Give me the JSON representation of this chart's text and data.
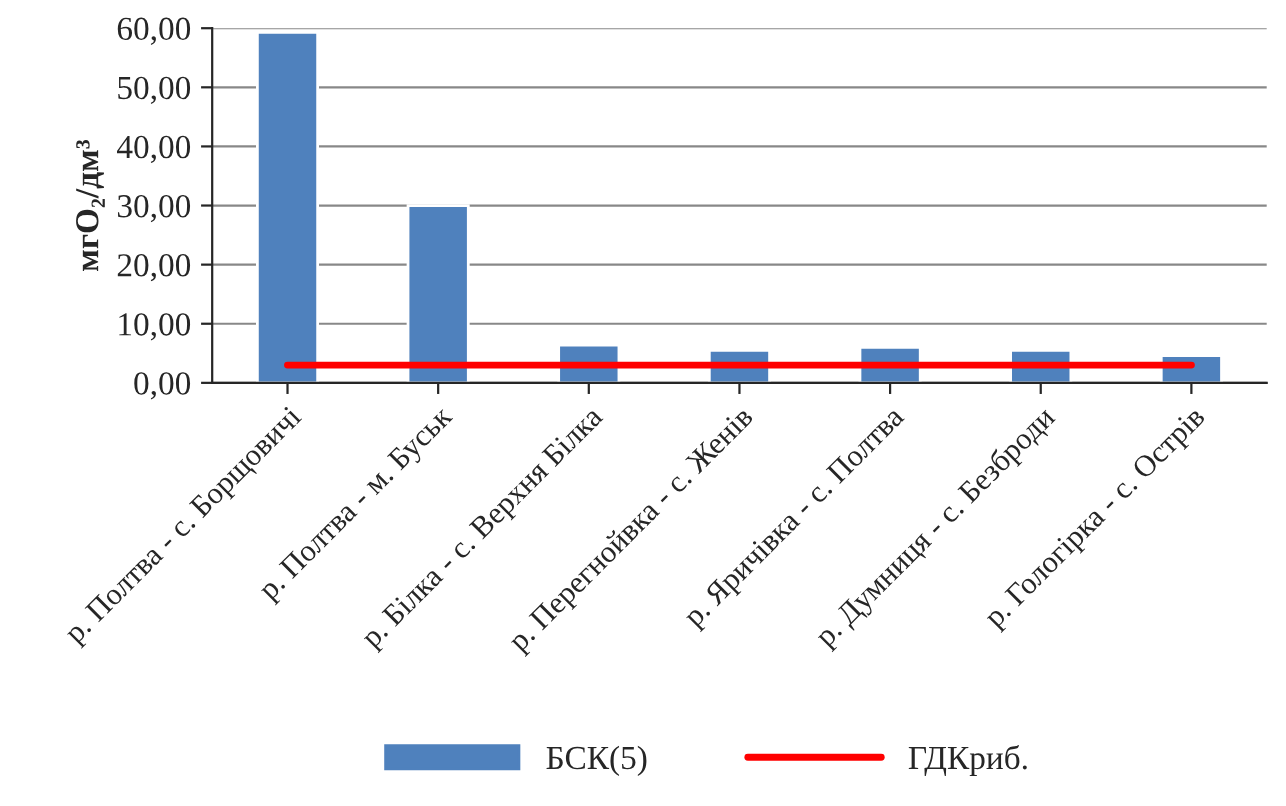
{
  "chart_data": {
    "type": "bar",
    "ylabel": "мгО₂/дм³",
    "categories": [
      "р. Полтва - с. Борщовичі",
      "р. Полтва - м. Буськ",
      "р. Білка - с. Верхня Білка",
      "р. Перегнойвка - с. Женів",
      "р. Яричівка - с. Полтва",
      "р. Думниця - с. Безброди",
      "р. Гологірка - с. Острів"
    ],
    "series": [
      {
        "name": "БСК(5)",
        "color": "#4f81bd",
        "values": [
          59.3,
          30.0,
          6.4,
          5.5,
          6.0,
          5.5,
          4.6
        ]
      },
      {
        "name": "ГДКриб.",
        "type": "line",
        "color": "#ff0000",
        "values": [
          3.0,
          3.0,
          3.0,
          3.0,
          3.0,
          3.0,
          3.0
        ]
      }
    ],
    "ylim": [
      0,
      60
    ],
    "yticks": [
      {
        "value": 0,
        "label": "0,00"
      },
      {
        "value": 10,
        "label": "10,00"
      },
      {
        "value": 20,
        "label": "20,00"
      },
      {
        "value": 30,
        "label": "30,00"
      },
      {
        "value": 40,
        "label": "40,00"
      },
      {
        "value": 50,
        "label": "50,00"
      },
      {
        "value": 60,
        "label": "60,00"
      }
    ],
    "grid": "y",
    "legend": "bottom"
  }
}
